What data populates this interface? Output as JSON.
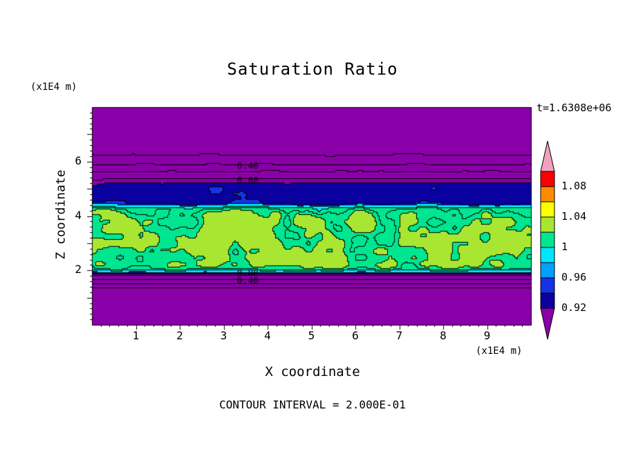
{
  "chart_data": {
    "type": "heatmap",
    "subtype": "filled-contour-plot",
    "title": "Saturation Ratio",
    "xlabel": "X coordinate",
    "ylabel": "Z coordinate",
    "x_unit": "(x1E4 m)",
    "y_unit": "(x1E4 m)",
    "time_annotation": "t=1.6308e+06",
    "footer": "CONTOUR INTERVAL = 2.000E-01",
    "contour_interval": 0.2,
    "xlim": [
      0,
      10
    ],
    "ylim": [
      0,
      8
    ],
    "x_ticks": [
      1,
      2,
      3,
      4,
      5,
      6,
      7,
      8,
      9
    ],
    "y_ticks": [
      2,
      4,
      6
    ],
    "contour_labels": [
      {
        "text": "0.40",
        "x": 3.55,
        "z": 5.82
      },
      {
        "text": "0.80",
        "x": 3.55,
        "z": 5.3
      },
      {
        "text": "0.80",
        "x": 3.55,
        "z": 1.88
      },
      {
        "text": "0.40",
        "x": 3.55,
        "z": 1.62
      }
    ],
    "field_model": {
      "description": "Saturation ratio S(x,z): low (purple <0.9) above z=5.3 and below z=1.8, dark blue band 0.90-0.94 near z=4.5-5.2, thin cyan strips near 0.96, mottled green region around S=1.0-1.06 for z=2-4.3",
      "base_profile_z_v": [
        [
          0,
          0.16
        ],
        [
          1.35,
          0.18
        ],
        [
          1.5,
          0.42
        ],
        [
          1.8,
          0.82
        ],
        [
          1.93,
          0.955
        ],
        [
          2.05,
          1.005
        ],
        [
          2.2,
          1.02
        ],
        [
          4.05,
          1.02
        ],
        [
          4.25,
          1.0
        ],
        [
          4.33,
          0.97
        ],
        [
          4.45,
          0.932
        ],
        [
          4.6,
          0.92
        ],
        [
          5.05,
          0.918
        ],
        [
          5.2,
          0.9
        ],
        [
          5.32,
          0.82
        ],
        [
          5.6,
          0.62
        ],
        [
          5.85,
          0.42
        ],
        [
          6.22,
          0.2
        ],
        [
          6.6,
          0.12
        ],
        [
          8,
          0.07
        ]
      ],
      "noise_amplitude_z_a": [
        [
          0,
          0.006
        ],
        [
          1.85,
          0.006
        ],
        [
          2.0,
          0.02
        ],
        [
          2.2,
          0.045
        ],
        [
          4.15,
          0.045
        ],
        [
          4.3,
          0.02
        ],
        [
          4.45,
          0.03
        ],
        [
          5.1,
          0.03
        ],
        [
          5.3,
          0.02
        ],
        [
          5.6,
          0.022
        ],
        [
          6.4,
          0.02
        ],
        [
          8,
          0.01
        ]
      ],
      "noise_scale_x": 18,
      "noise_scale_z": 13,
      "color_levels": [
        {
          "max": 0.895,
          "color": "#8A00A8"
        },
        {
          "max": 0.935,
          "color": "#0A00A0"
        },
        {
          "max": 0.948,
          "color": "#1432E6"
        },
        {
          "max": 0.98,
          "color": "#00E6FF"
        },
        {
          "max": 1.02,
          "color": "#00E690"
        },
        {
          "max": 1.062,
          "color": "#A8E632"
        },
        {
          "max": 9.0,
          "color": "#FFFF00"
        }
      ]
    },
    "colorbar": {
      "labels": [
        "1.08",
        "1.04",
        "1",
        "0.96",
        "0.92"
      ],
      "box_colors": [
        "#FF0000",
        "#FF8C00",
        "#FFFF00",
        "#A8E632",
        "#00E690",
        "#00E6FF",
        "#00A0FF",
        "#1432E6",
        "#0A00A0"
      ],
      "top_triangle_color": "#F2A0BE",
      "bottom_triangle_color": "#8A00A8"
    }
  }
}
